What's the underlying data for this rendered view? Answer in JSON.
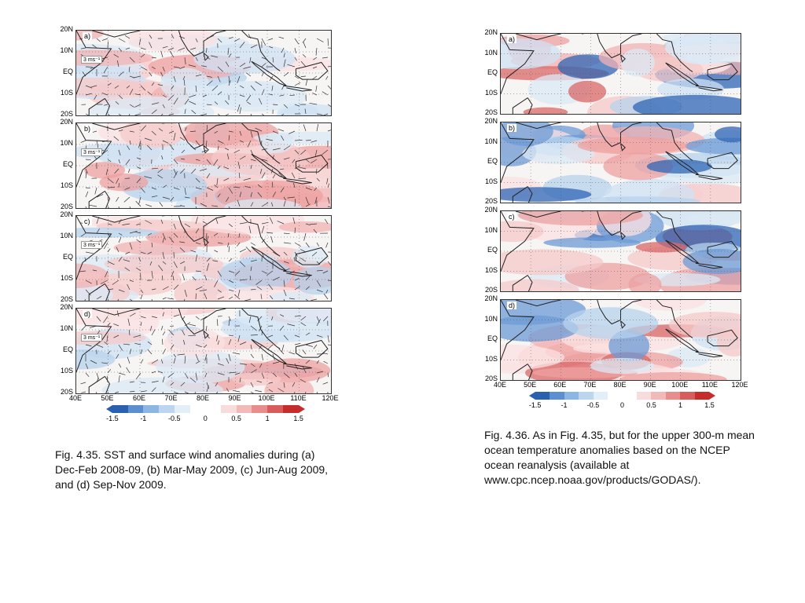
{
  "left_figure": {
    "panels": [
      {
        "letter": "a)",
        "ref": "3 ms⁻¹"
      },
      {
        "letter": "b)",
        "ref": "3 ms⁻¹"
      },
      {
        "letter": "c)",
        "ref": "3 ms⁻¹"
      },
      {
        "letter": "d)",
        "ref": "3 ms⁻¹"
      }
    ],
    "y_ticks": [
      "20N",
      "10N",
      "EQ",
      "10S",
      "20S"
    ],
    "x_ticks": [
      "40E",
      "50E",
      "60E",
      "70E",
      "80E",
      "90E",
      "100E",
      "110E",
      "120E"
    ],
    "colorbar_labels": [
      "-1.5",
      "-1",
      "-0.5",
      "0",
      "0.5",
      "1",
      "1.5"
    ]
  },
  "right_figure": {
    "panels": [
      {
        "letter": "a)"
      },
      {
        "letter": "b)"
      },
      {
        "letter": "c)"
      },
      {
        "letter": "d)"
      }
    ],
    "y_ticks": [
      "20N",
      "10N",
      "EQ",
      "10S",
      "20S"
    ],
    "x_ticks": [
      "40E",
      "50E",
      "60E",
      "70E",
      "80E",
      "90E",
      "100E",
      "110E",
      "120E"
    ],
    "colorbar_labels": [
      "-1.5",
      "-1",
      "-0.5",
      "0",
      "0.5",
      "1",
      "1.5"
    ]
  },
  "captions": {
    "left": "Fig. 4.35. SST and surface wind anomalies during (a) Dec-Feb 2008-09, (b) Mar-May 2009, (c) Jun-Aug 2009, and (d) Sep-Nov 2009.",
    "right": "Fig. 4.36. As in Fig. 4.35, but for the upper 300-m mean ocean temperature anomalies based on the NCEP ocean reanalysis (available at www.cpc.ncep.noaa.gov/products/GODAS/)."
  },
  "colors": {
    "cbar": [
      "#2a60b0",
      "#5b8fd0",
      "#8cb6e3",
      "#bcd6ef",
      "#e2eef8",
      "#ffffff",
      "#ffffff",
      "#f8dcdc",
      "#f2b9b9",
      "#e88c8c",
      "#d95c5c",
      "#c72c2c"
    ]
  }
}
